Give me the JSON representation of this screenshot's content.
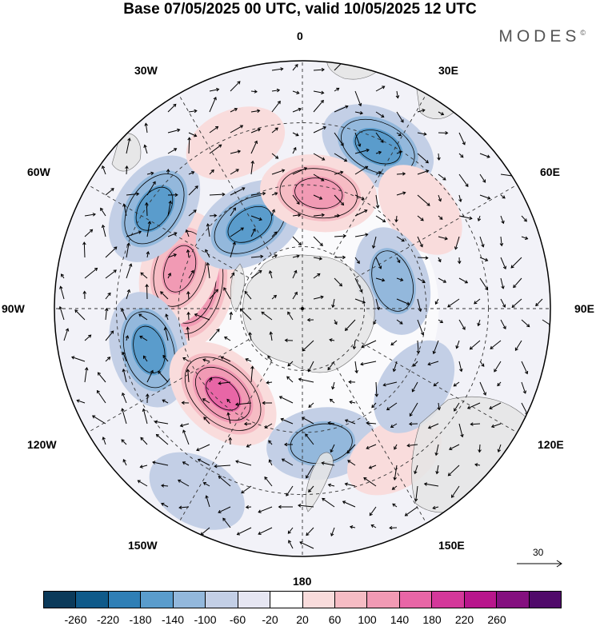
{
  "title": "Base 07/05/2025 00 UTC, valid 10/05/2025 12 UTC",
  "brand": "MODES",
  "brand_mark": "©",
  "longitude_labels": {
    "l0": "0",
    "l30e": "30E",
    "l60e": "60E",
    "l90e": "90E",
    "l120e": "120E",
    "l150e": "150E",
    "l180": "180",
    "l150w": "150W",
    "l120w": "120W",
    "l90w": "90W",
    "l60w": "60W",
    "l30w": "30W"
  },
  "vector_reference": "30",
  "colorbar": {
    "colors": [
      "#0b3a5a",
      "#0f5a8a",
      "#2f7fb6",
      "#5a9ccc",
      "#93b8dc",
      "#c3cfe6",
      "#e6e6f2",
      "#ffffff",
      "#f9dcdc",
      "#f6bcc4",
      "#f19ab4",
      "#e866a6",
      "#d4389a",
      "#b8168c",
      "#84107f",
      "#500a6a"
    ],
    "ticks": [
      "-260",
      "-220",
      "-180",
      "-140",
      "-100",
      "-60",
      "-20",
      "20",
      "60",
      "100",
      "140",
      "180",
      "220",
      "260"
    ]
  },
  "anomalies": [
    {
      "sign": "pos",
      "level": 5,
      "lon": -78,
      "r": 0.46
    },
    {
      "sign": "pos",
      "level": 3,
      "lon": -72,
      "r": 0.52
    },
    {
      "sign": "neg",
      "level": 3,
      "lon": -56,
      "r": 0.72
    },
    {
      "sign": "neg",
      "level": 3,
      "lon": -32,
      "r": 0.4
    },
    {
      "sign": "pos",
      "level": 1,
      "lon": -22,
      "r": 0.72
    },
    {
      "sign": "neg",
      "level": 3,
      "lon": 25,
      "r": 0.72
    },
    {
      "sign": "pos",
      "level": 3,
      "lon": 8,
      "r": 0.47
    },
    {
      "sign": "pos",
      "level": 1,
      "lon": 50,
      "r": 0.62
    },
    {
      "sign": "neg",
      "level": 2,
      "lon": 73,
      "r": 0.38
    },
    {
      "sign": "neg",
      "level": 3,
      "lon": -105,
      "r": 0.64
    },
    {
      "sign": "pos",
      "level": 4,
      "lon": -137,
      "r": 0.47
    },
    {
      "sign": "neg",
      "level": 2,
      "lon": 172,
      "r": 0.55
    },
    {
      "sign": "neg",
      "level": 1,
      "lon": -150,
      "r": 0.85
    },
    {
      "sign": "pos",
      "level": 1,
      "lon": 148,
      "r": 0.7
    },
    {
      "sign": "neg",
      "level": 1,
      "lon": 125,
      "r": 0.55
    }
  ]
}
